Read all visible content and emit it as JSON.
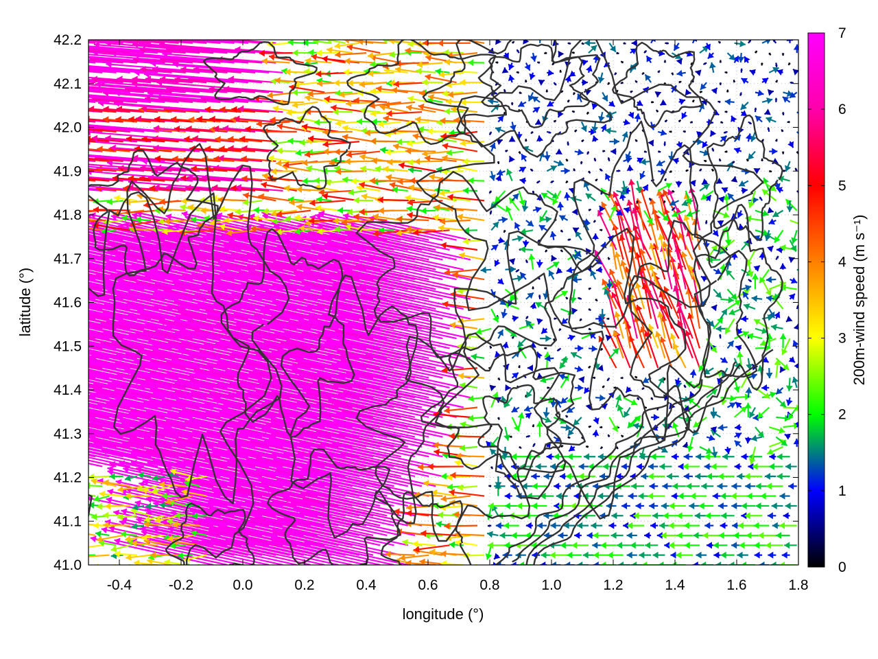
{
  "chart_data": {
    "type": "vector-field",
    "xlabel": "longitude (°)",
    "ylabel": "latitude (°)",
    "xlim": [
      -0.5,
      1.8
    ],
    "ylim": [
      41.0,
      42.2
    ],
    "x_ticks": [
      "-0.4",
      "-0.2",
      "0.0",
      "0.2",
      "0.4",
      "0.6",
      "0.8",
      "1.0",
      "1.2",
      "1.4",
      "1.6",
      "1.8"
    ],
    "y_ticks": [
      "41.0",
      "41.1",
      "41.2",
      "41.3",
      "41.4",
      "41.5",
      "41.6",
      "41.7",
      "41.8",
      "41.9",
      "42.0",
      "42.1",
      "42.2"
    ],
    "grid": "dotted",
    "colorbar": {
      "label": "200m-wind speed (m s⁻¹)",
      "range": [
        0,
        7
      ],
      "ticks": [
        "0",
        "1",
        "2",
        "3",
        "4",
        "5",
        "6",
        "7"
      ],
      "colors": [
        "#000000",
        "#0000ff",
        "#00ff00",
        "#ffff00",
        "#ff8000",
        "#ff0000",
        "#ff00ff"
      ]
    },
    "contour_color": "#333333",
    "wind_regions": [
      {
        "region": "north-west strip, lat 41.85-42.2",
        "direction": "westward",
        "speed_range": [
          4,
          7
        ]
      },
      {
        "region": "west and south-west, lon -0.5-0.5, lat 41.0-41.75",
        "direction": "west-north-westward",
        "speed_range": [
          6.5,
          7
        ]
      },
      {
        "region": "central valley, lon 0.2-0.8",
        "direction": "westward",
        "speed_range": [
          2,
          5
        ]
      },
      {
        "region": "east, lon 1.2-1.5, lat 41.45-41.8",
        "direction": "north-north-westward",
        "speed_range": [
          3.5,
          6
        ]
      },
      {
        "region": "south-east coast, lon 1.0-1.8, lat 41.0-41.25",
        "direction": "westward",
        "speed_range": [
          1,
          2.5
        ]
      },
      {
        "region": "north-east, lon 0.8-1.8, lat 41.9-42.2",
        "direction": "variable",
        "speed_range": [
          0,
          1.5
        ]
      }
    ]
  }
}
